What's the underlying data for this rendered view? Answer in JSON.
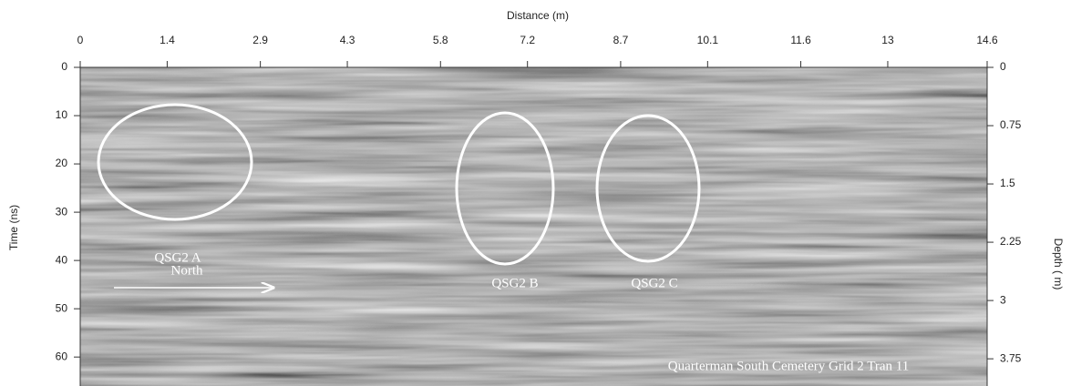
{
  "chart_data": {
    "type": "radargram",
    "x_label": "Distance (m)",
    "y_label": "Time (ns)",
    "y2_label": "Depth ( m)",
    "xlim": [
      0,
      14.6
    ],
    "xticks": [
      0,
      1.4,
      2.9,
      4.3,
      5.8,
      7.2,
      8.7,
      10.1,
      11.6,
      13,
      14.6
    ],
    "ylim": [
      0,
      66
    ],
    "yticks": [
      0,
      10,
      20,
      30,
      40,
      50,
      60
    ],
    "y2lim": [
      0,
      4.1
    ],
    "y2ticks": [
      0,
      0.75,
      1.5,
      2.25,
      3,
      3.75
    ],
    "annotations": [
      "QSG2 A",
      "QSG2 B",
      "QSG2 C"
    ],
    "direction_label": "North",
    "caption": "Quarterman South Cemetery Grid 2 Tran 11"
  }
}
